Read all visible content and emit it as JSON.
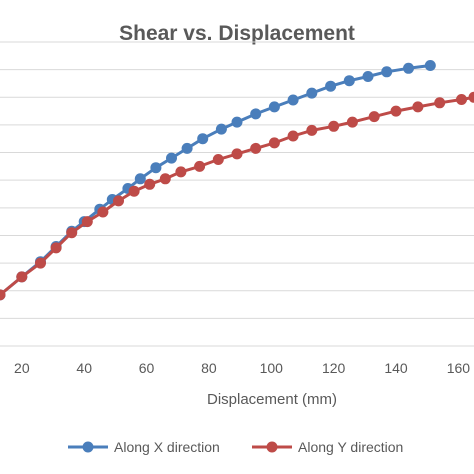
{
  "chart_data": {
    "type": "line",
    "title": "Shear vs. Displacement",
    "xlabel": "Displacement (mm)",
    "ylabel": "",
    "xlim": [
      13,
      165
    ],
    "ylim": [
      0,
      11
    ],
    "grid": {
      "horizontal": true,
      "vertical": false
    },
    "legend_position": "bottom",
    "x_ticks": [
      20,
      40,
      60,
      80,
      100,
      120,
      140,
      160
    ],
    "x_tick_labels": [
      "20",
      "40",
      "60",
      "80",
      "100",
      "120",
      "140",
      "160"
    ],
    "y_gridlines": [
      0,
      1,
      2,
      3,
      4,
      5,
      6,
      7,
      8,
      9,
      10,
      11
    ],
    "series": [
      {
        "name": "Along X direction",
        "color": "#4a7ebb",
        "marker": "circle",
        "points": [
          [
            13,
            1.85
          ],
          [
            20,
            2.5
          ],
          [
            26,
            3.05
          ],
          [
            31,
            3.6
          ],
          [
            36,
            4.15
          ],
          [
            40,
            4.5
          ],
          [
            45,
            4.95
          ],
          [
            49,
            5.3
          ],
          [
            54,
            5.7
          ],
          [
            58,
            6.05
          ],
          [
            63,
            6.45
          ],
          [
            68,
            6.8
          ],
          [
            73,
            7.15
          ],
          [
            78,
            7.5
          ],
          [
            84,
            7.85
          ],
          [
            89,
            8.1
          ],
          [
            95,
            8.4
          ],
          [
            101,
            8.65
          ],
          [
            107,
            8.9
          ],
          [
            113,
            9.15
          ],
          [
            119,
            9.4
          ],
          [
            125,
            9.6
          ],
          [
            131,
            9.75
          ],
          [
            137,
            9.92
          ],
          [
            144,
            10.05
          ],
          [
            151,
            10.15
          ]
        ]
      },
      {
        "name": "Along Y direction",
        "color": "#be4b48",
        "marker": "circle",
        "points": [
          [
            13,
            1.85
          ],
          [
            20,
            2.5
          ],
          [
            26,
            3.0
          ],
          [
            31,
            3.55
          ],
          [
            36,
            4.1
          ],
          [
            41,
            4.5
          ],
          [
            46,
            4.85
          ],
          [
            51,
            5.25
          ],
          [
            56,
            5.6
          ],
          [
            61,
            5.85
          ],
          [
            66,
            6.05
          ],
          [
            71,
            6.3
          ],
          [
            77,
            6.5
          ],
          [
            83,
            6.75
          ],
          [
            89,
            6.95
          ],
          [
            95,
            7.15
          ],
          [
            101,
            7.35
          ],
          [
            107,
            7.6
          ],
          [
            113,
            7.8
          ],
          [
            120,
            7.95
          ],
          [
            126,
            8.1
          ],
          [
            133,
            8.3
          ],
          [
            140,
            8.5
          ],
          [
            147,
            8.65
          ],
          [
            154,
            8.8
          ],
          [
            161,
            8.92
          ],
          [
            165,
            9.0
          ]
        ]
      }
    ]
  }
}
